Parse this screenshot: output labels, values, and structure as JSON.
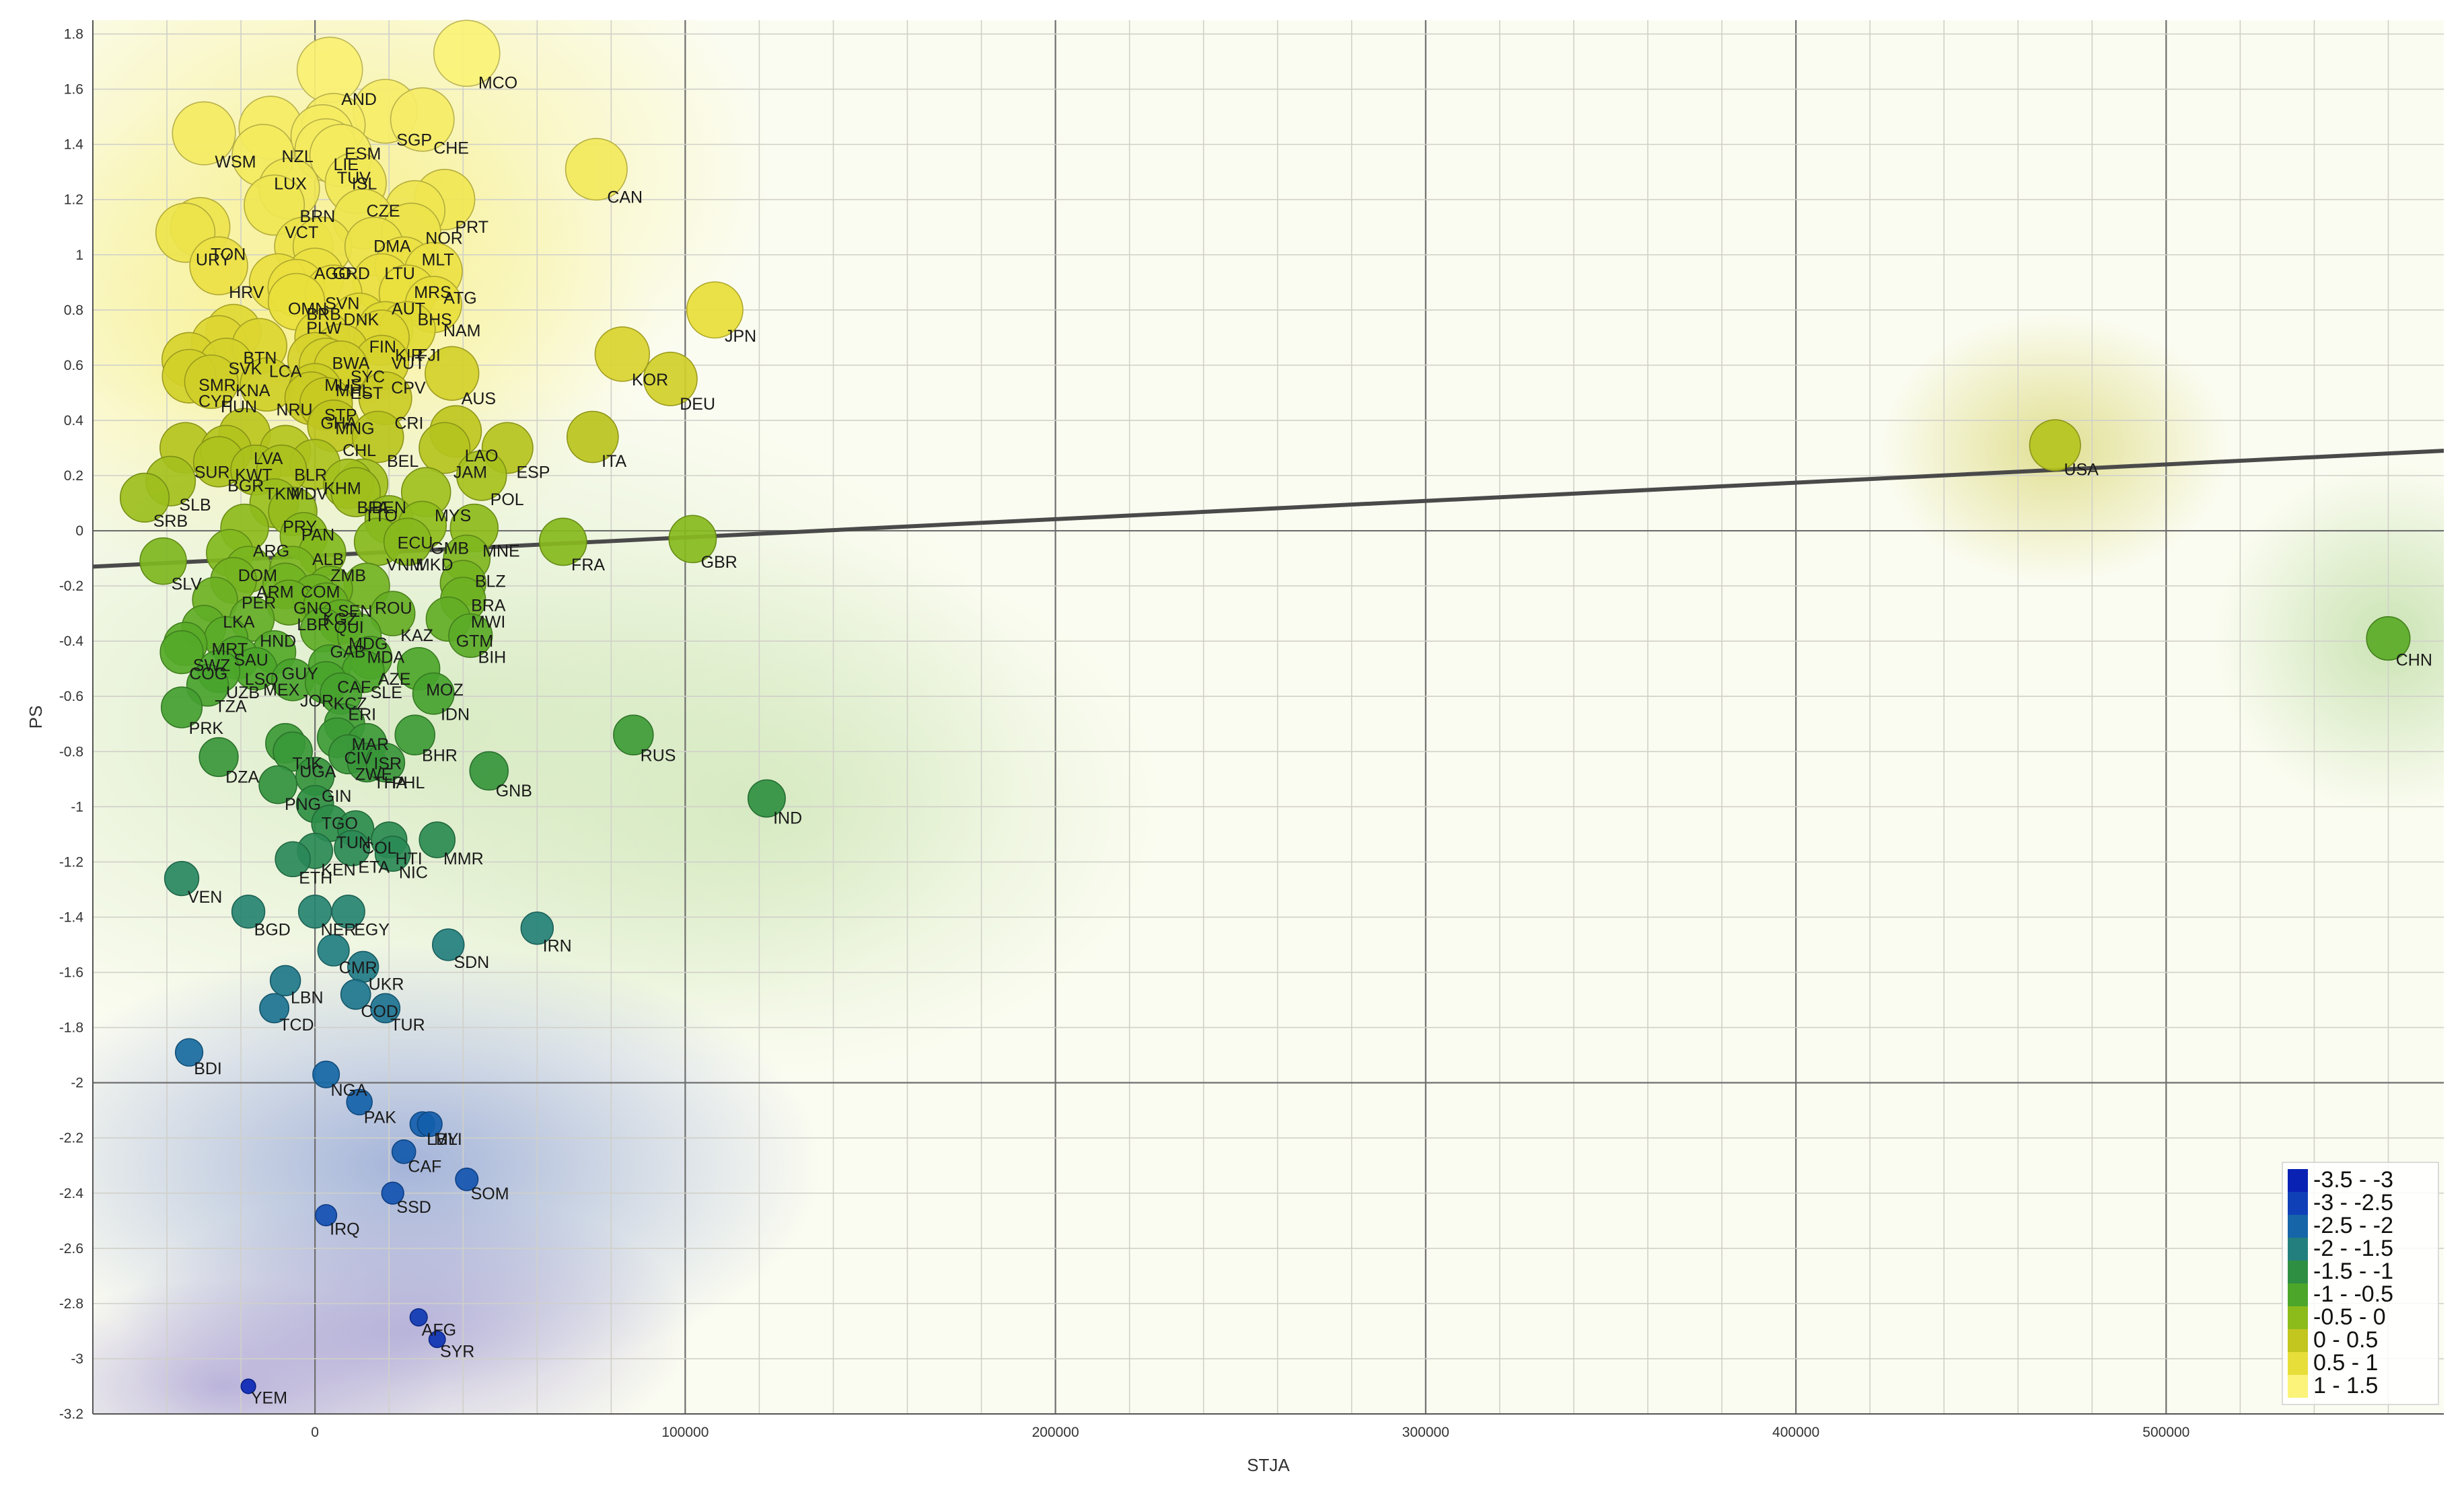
{
  "chart_data": {
    "type": "scatter",
    "xlabel": "STJA",
    "ylabel": "PS",
    "xlim": [
      -60000,
      575000
    ],
    "ylim": [
      -3.2,
      1.85
    ],
    "x_ticks": [
      0,
      100000,
      200000,
      300000,
      400000,
      500000
    ],
    "x_tick_labels": [
      "0",
      "100000",
      "200000",
      "300000",
      "400000",
      "500000"
    ],
    "y_ticks": [
      1.8,
      1.6,
      1.4,
      1.2,
      1,
      0.8,
      0.6,
      0.4,
      0.2,
      0,
      -0.2,
      -0.4,
      -0.6,
      -0.8,
      -1,
      -1.2,
      -1.4,
      -1.6,
      -1.8,
      -2,
      -2.2,
      -2.4,
      -2.6,
      -2.8,
      -3,
      -3.2
    ],
    "y_tick_labels": [
      "1.8",
      "1.6",
      "1.4",
      "1.2",
      "1",
      "0.8",
      "0.6",
      "0.4",
      "0.2",
      "0",
      "-0.2",
      "-0.4",
      "-0.6",
      "-0.8",
      "-1",
      "-1.2",
      "-1.4",
      "-1.6",
      "-1.8",
      "-2",
      "-2.2",
      "-2.4",
      "-2.6",
      "-2.8",
      "-3",
      "-3.2"
    ],
    "grid": true,
    "point_size_encodes": "PS",
    "point_color_encodes": "PS",
    "trend_line": {
      "x": [
        -60000,
        575000
      ],
      "y": [
        -0.13,
        0.29
      ],
      "color": "#4a4a4a"
    },
    "legend": {
      "position": "bottom-right",
      "entries": [
        {
          "label": "-3.5 - -3",
          "color": "#0a22b4"
        },
        {
          "label": "-3 - -2.5",
          "color": "#1040b8"
        },
        {
          "label": "-2.5 - -2",
          "color": "#1565a8"
        },
        {
          "label": "-2 - -1.5",
          "color": "#237f7e"
        },
        {
          "label": "-1.5 - -1",
          "color": "#2e8f42"
        },
        {
          "label": "-1 - -0.5",
          "color": "#4ca62a"
        },
        {
          "label": "-0.5 - 0",
          "color": "#8cbb1c"
        },
        {
          "label": "0 - 0.5",
          "color": "#c2c61e"
        },
        {
          "label": "0.5 - 1",
          "color": "#e8de3a"
        },
        {
          "label": "1 - 1.5",
          "color": "#fbf37a"
        }
      ]
    },
    "points": [
      {
        "label": "MCO",
        "x": 41000,
        "y": 1.73
      },
      {
        "label": "AND",
        "x": 4000,
        "y": 1.67
      },
      {
        "label": "CHE",
        "x": 29000,
        "y": 1.49
      },
      {
        "label": "SGP",
        "x": 19000,
        "y": 1.52
      },
      {
        "label": "ESM",
        "x": 5000,
        "y": 1.47
      },
      {
        "label": "LIE",
        "x": 2000,
        "y": 1.43
      },
      {
        "label": "NZL",
        "x": -12000,
        "y": 1.46
      },
      {
        "label": "WSM",
        "x": -30000,
        "y": 1.44
      },
      {
        "label": "TUV",
        "x": 3000,
        "y": 1.38
      },
      {
        "label": "ISL",
        "x": 7000,
        "y": 1.36
      },
      {
        "label": "LUX",
        "x": -14000,
        "y": 1.36
      },
      {
        "label": "CAN",
        "x": 76000,
        "y": 1.31
      },
      {
        "label": "CZE",
        "x": 11000,
        "y": 1.26
      },
      {
        "label": "BRN",
        "x": -7000,
        "y": 1.24
      },
      {
        "label": "PRT",
        "x": 35000,
        "y": 1.2
      },
      {
        "label": "VCT",
        "x": -11000,
        "y": 1.18
      },
      {
        "label": "DMA",
        "x": 13000,
        "y": 1.13
      },
      {
        "label": "NOR",
        "x": 27000,
        "y": 1.16
      },
      {
        "label": "MLT",
        "x": 26000,
        "y": 1.08
      },
      {
        "label": "URY",
        "x": -35000,
        "y": 1.08
      },
      {
        "label": "TON",
        "x": -31000,
        "y": 1.1
      },
      {
        "label": "AGO",
        "x": -3000,
        "y": 1.03
      },
      {
        "label": "GRD",
        "x": 2000,
        "y": 1.03
      },
      {
        "label": "LTU",
        "x": 16000,
        "y": 1.03
      },
      {
        "label": "HRV",
        "x": -26000,
        "y": 0.96
      },
      {
        "label": "MRS",
        "x": 24000,
        "y": 0.96
      },
      {
        "label": "ATG",
        "x": 32000,
        "y": 0.94
      },
      {
        "label": "SVN",
        "x": 0,
        "y": 0.92
      },
      {
        "label": "AUT",
        "x": 18000,
        "y": 0.9
      },
      {
        "label": "OMN",
        "x": -10000,
        "y": 0.9
      },
      {
        "label": "BRB",
        "x": -5000,
        "y": 0.88
      },
      {
        "label": "DNK",
        "x": 5000,
        "y": 0.86
      },
      {
        "label": "BHS",
        "x": 25000,
        "y": 0.86
      },
      {
        "label": "NAM",
        "x": 32000,
        "y": 0.82
      },
      {
        "label": "PLW",
        "x": -5000,
        "y": 0.83
      },
      {
        "label": "JPN",
        "x": 108000,
        "y": 0.8
      },
      {
        "label": "FIN",
        "x": 12000,
        "y": 0.76
      },
      {
        "label": "KIR",
        "x": 19000,
        "y": 0.73
      },
      {
        "label": "FJI",
        "x": 25000,
        "y": 0.73
      },
      {
        "label": "BWA",
        "x": 2000,
        "y": 0.7
      },
      {
        "label": "BTN",
        "x": -22000,
        "y": 0.72
      },
      {
        "label": "VUT",
        "x": 18000,
        "y": 0.7
      },
      {
        "label": "LCA",
        "x": -15000,
        "y": 0.67
      },
      {
        "label": "SVK",
        "x": -26000,
        "y": 0.68
      },
      {
        "label": "SYC",
        "x": 7000,
        "y": 0.65
      },
      {
        "label": "KOR",
        "x": 83000,
        "y": 0.64
      },
      {
        "label": "SMR",
        "x": -34000,
        "y": 0.62
      },
      {
        "label": "MUS",
        "x": 0,
        "y": 0.62
      },
      {
        "label": "CPV",
        "x": 18000,
        "y": 0.61
      },
      {
        "label": "KNA",
        "x": -24000,
        "y": 0.6
      },
      {
        "label": "MHL",
        "x": 3000,
        "y": 0.6
      },
      {
        "label": "EST",
        "x": 7000,
        "y": 0.59
      },
      {
        "label": "AUS",
        "x": 37000,
        "y": 0.57
      },
      {
        "label": "HUN",
        "x": -28000,
        "y": 0.54
      },
      {
        "label": "CYP",
        "x": -34000,
        "y": 0.56
      },
      {
        "label": "NRU",
        "x": -13000,
        "y": 0.53
      },
      {
        "label": "DEU",
        "x": 96000,
        "y": 0.55
      },
      {
        "label": "STP",
        "x": 0,
        "y": 0.51
      },
      {
        "label": "GHA",
        "x": -1000,
        "y": 0.48
      },
      {
        "label": "MNG",
        "x": 3000,
        "y": 0.46
      },
      {
        "label": "CRI",
        "x": 19000,
        "y": 0.48
      },
      {
        "label": "LVA",
        "x": -19000,
        "y": 0.35
      },
      {
        "label": "CHL",
        "x": 5000,
        "y": 0.38
      },
      {
        "label": "BEL",
        "x": 17000,
        "y": 0.34
      },
      {
        "label": "ITA",
        "x": 75000,
        "y": 0.34
      },
      {
        "label": "LAO",
        "x": 38000,
        "y": 0.36
      },
      {
        "label": "JAM",
        "x": 35000,
        "y": 0.3
      },
      {
        "label": "ESP",
        "x": 52000,
        "y": 0.3
      },
      {
        "label": "KWT",
        "x": -24000,
        "y": 0.29
      },
      {
        "label": "BLR",
        "x": -8000,
        "y": 0.29
      },
      {
        "label": "SUR",
        "x": -35000,
        "y": 0.3
      },
      {
        "label": "BGR",
        "x": -26000,
        "y": 0.25
      },
      {
        "label": "TKM",
        "x": -16000,
        "y": 0.22
      },
      {
        "label": "MDV",
        "x": -9000,
        "y": 0.22
      },
      {
        "label": "KHM",
        "x": 0,
        "y": 0.24
      },
      {
        "label": "SLB",
        "x": -39000,
        "y": 0.18
      },
      {
        "label": "SRB",
        "x": -46000,
        "y": 0.12
      },
      {
        "label": "POL",
        "x": 45000,
        "y": 0.2
      },
      {
        "label": "BEN",
        "x": 13000,
        "y": 0.17
      },
      {
        "label": "BFA",
        "x": 9000,
        "y": 0.17
      },
      {
        "label": "TTO",
        "x": 11000,
        "y": 0.14
      },
      {
        "label": "MYS",
        "x": 30000,
        "y": 0.14
      },
      {
        "label": "PRY",
        "x": -11000,
        "y": 0.1
      },
      {
        "label": "PAN",
        "x": -6000,
        "y": 0.07
      },
      {
        "label": "ARG",
        "x": -19000,
        "y": 0.01
      },
      {
        "label": "ECU",
        "x": 20000,
        "y": 0.04
      },
      {
        "label": "GMB",
        "x": 29000,
        "y": 0.02
      },
      {
        "label": "MNE",
        "x": 43000,
        "y": 0.01
      },
      {
        "label": "ALB",
        "x": -3000,
        "y": -0.02
      },
      {
        "label": "VNM",
        "x": 17000,
        "y": -0.04
      },
      {
        "label": "MKD",
        "x": 25000,
        "y": -0.04
      },
      {
        "label": "DOM",
        "x": -23000,
        "y": -0.08
      },
      {
        "label": "ZMB",
        "x": 2000,
        "y": -0.08
      },
      {
        "label": "FRA",
        "x": 67000,
        "y": -0.04
      },
      {
        "label": "GBR",
        "x": 102000,
        "y": -0.03
      },
      {
        "label": "BLZ",
        "x": 41000,
        "y": -0.1
      },
      {
        "label": "SLV",
        "x": -41000,
        "y": -0.11
      },
      {
        "label": "ARM",
        "x": -18000,
        "y": -0.14
      },
      {
        "label": "COM",
        "x": -6000,
        "y": -0.14
      },
      {
        "label": "PER",
        "x": -22000,
        "y": -0.18
      },
      {
        "label": "GNQ",
        "x": -8000,
        "y": -0.2
      },
      {
        "label": "SEN",
        "x": 4000,
        "y": -0.21
      },
      {
        "label": "ROU",
        "x": 14000,
        "y": -0.2
      },
      {
        "label": "BRA",
        "x": 40000,
        "y": -0.19
      },
      {
        "label": "KGZ",
        "x": 0,
        "y": -0.24
      },
      {
        "label": "LKA",
        "x": -27000,
        "y": -0.25
      },
      {
        "label": "LBR",
        "x": -7000,
        "y": -0.26
      },
      {
        "label": "MWI",
        "x": 40000,
        "y": -0.25
      },
      {
        "label": "QUI",
        "x": 3000,
        "y": -0.27
      },
      {
        "label": "KAZ",
        "x": 21000,
        "y": -0.3
      },
      {
        "label": "HND",
        "x": -17000,
        "y": -0.32
      },
      {
        "label": "MDG",
        "x": 7000,
        "y": -0.33
      },
      {
        "label": "MRT",
        "x": -30000,
        "y": -0.35
      },
      {
        "label": "GTM",
        "x": 36000,
        "y": -0.32
      },
      {
        "label": "GAB",
        "x": 2000,
        "y": -0.36
      },
      {
        "label": "MDA",
        "x": 12000,
        "y": -0.38
      },
      {
        "label": "BIH",
        "x": 42000,
        "y": -0.38
      },
      {
        "label": "SAU",
        "x": -24000,
        "y": -0.39
      },
      {
        "label": "SWZ",
        "x": -35000,
        "y": -0.41
      },
      {
        "label": "GUY",
        "x": -11000,
        "y": -0.44
      },
      {
        "label": "AZE",
        "x": 15000,
        "y": -0.46
      },
      {
        "label": "COG",
        "x": -36000,
        "y": -0.44
      },
      {
        "label": "LSO",
        "x": -21000,
        "y": -0.46
      },
      {
        "label": "UZB",
        "x": -26000,
        "y": -0.51
      },
      {
        "label": "MEX",
        "x": -16000,
        "y": -0.5
      },
      {
        "label": "CAF",
        "x": 4000,
        "y": -0.49
      },
      {
        "label": "SLE",
        "x": 13000,
        "y": -0.51
      },
      {
        "label": "JOR",
        "x": -6000,
        "y": -0.54
      },
      {
        "label": "KCZ",
        "x": 3000,
        "y": -0.55
      },
      {
        "label": "MOZ",
        "x": 28000,
        "y": -0.5
      },
      {
        "label": "TZA",
        "x": -29000,
        "y": -0.56
      },
      {
        "label": "ERI",
        "x": 7000,
        "y": -0.59
      },
      {
        "label": "IDN",
        "x": 32000,
        "y": -0.59
      },
      {
        "label": "PRK",
        "x": -36000,
        "y": -0.64
      },
      {
        "label": "MAR",
        "x": 8000,
        "y": -0.7
      },
      {
        "label": "CIV",
        "x": 6000,
        "y": -0.75
      },
      {
        "label": "ISR",
        "x": 14000,
        "y": -0.77
      },
      {
        "label": "BHR",
        "x": 27000,
        "y": -0.74
      },
      {
        "label": "RUS",
        "x": 86000,
        "y": -0.74
      },
      {
        "label": "TJK",
        "x": -8000,
        "y": -0.77
      },
      {
        "label": "UGA",
        "x": -6000,
        "y": -0.8
      },
      {
        "label": "ZWE",
        "x": 9000,
        "y": -0.81
      },
      {
        "label": "THA",
        "x": 14000,
        "y": -0.84
      },
      {
        "label": "PHL",
        "x": 19000,
        "y": -0.84
      },
      {
        "label": "DZA",
        "x": -26000,
        "y": -0.82
      },
      {
        "label": "GNB",
        "x": 47000,
        "y": -0.87
      },
      {
        "label": "GIN",
        "x": 0,
        "y": -0.89
      },
      {
        "label": "PNG",
        "x": -10000,
        "y": -0.92
      },
      {
        "label": "TGO",
        "x": 0,
        "y": -0.99
      },
      {
        "label": "IND",
        "x": 122000,
        "y": -0.97
      },
      {
        "label": "TUN",
        "x": 4000,
        "y": -1.06
      },
      {
        "label": "COL",
        "x": 11000,
        "y": -1.08
      },
      {
        "label": "HTI",
        "x": 20000,
        "y": -1.12
      },
      {
        "label": "MMR",
        "x": 33000,
        "y": -1.12
      },
      {
        "label": "ETA",
        "x": 10000,
        "y": -1.15
      },
      {
        "label": "KEN",
        "x": 0,
        "y": -1.16
      },
      {
        "label": "NIC",
        "x": 21000,
        "y": -1.17
      },
      {
        "label": "ETH",
        "x": -6000,
        "y": -1.19
      },
      {
        "label": "VEN",
        "x": -36000,
        "y": -1.26
      },
      {
        "label": "BGD",
        "x": -18000,
        "y": -1.38
      },
      {
        "label": "NER",
        "x": 0,
        "y": -1.38
      },
      {
        "label": "EGY",
        "x": 9000,
        "y": -1.38
      },
      {
        "label": "IRN",
        "x": 60000,
        "y": -1.44
      },
      {
        "label": "SDN",
        "x": 36000,
        "y": -1.5
      },
      {
        "label": "CMR",
        "x": 5000,
        "y": -1.52
      },
      {
        "label": "UKR",
        "x": 13000,
        "y": -1.58
      },
      {
        "label": "LBN",
        "x": -8000,
        "y": -1.63
      },
      {
        "label": "COD",
        "x": 11000,
        "y": -1.68
      },
      {
        "label": "TCD",
        "x": -11000,
        "y": -1.73
      },
      {
        "label": "TUR",
        "x": 19000,
        "y": -1.73
      },
      {
        "label": "BDI",
        "x": -34000,
        "y": -1.89
      },
      {
        "label": "NGA",
        "x": 3000,
        "y": -1.97
      },
      {
        "label": "PAK",
        "x": 12000,
        "y": -2.07
      },
      {
        "label": "LBY",
        "x": 29000,
        "y": -2.15
      },
      {
        "label": "MLI",
        "x": 31000,
        "y": -2.15
      },
      {
        "label": "CAF",
        "x": 24000,
        "y": -2.25
      },
      {
        "label": "SOM",
        "x": 41000,
        "y": -2.35
      },
      {
        "label": "SSD",
        "x": 21000,
        "y": -2.4
      },
      {
        "label": "IRQ",
        "x": 3000,
        "y": -2.48
      },
      {
        "label": "AFG",
        "x": 28000,
        "y": -2.85
      },
      {
        "label": "SYR",
        "x": 33000,
        "y": -2.93
      },
      {
        "label": "YEM",
        "x": -18000,
        "y": -3.1
      },
      {
        "label": "USA",
        "x": 470000,
        "y": 0.31
      },
      {
        "label": "CHN",
        "x": 560000,
        "y": -0.39
      }
    ]
  }
}
